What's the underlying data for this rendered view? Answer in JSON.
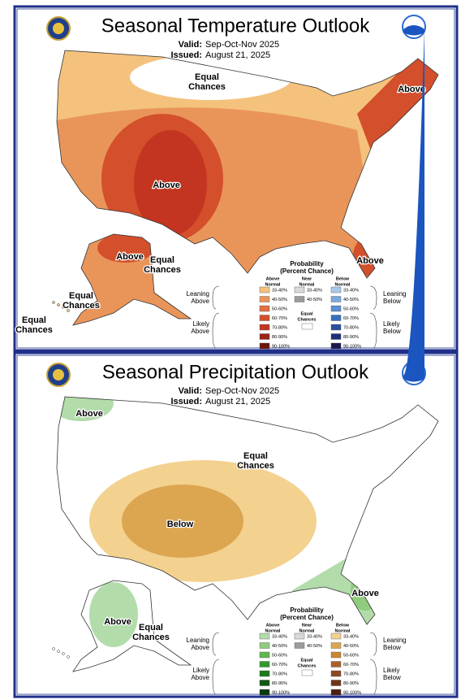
{
  "panels": [
    {
      "title": "Seasonal Temperature Outlook",
      "valid_label": "Valid:",
      "valid": "Sep-Oct-Nov 2025",
      "issued_label": "Issued:",
      "issued": "August 21, 2025",
      "map_labels": [
        [
          "Equal",
          "Chances"
        ],
        [
          "Above"
        ],
        [
          "Above"
        ],
        [
          "Above"
        ],
        [
          "Equal",
          "Chances"
        ],
        [
          "Above"
        ],
        [
          "Equal",
          "Chances"
        ],
        [
          "Equal",
          "Chances"
        ]
      ],
      "legend": {
        "title": "Probability",
        "subtitle": "(Percent Chance)",
        "above_header": [
          "Above",
          "Normal"
        ],
        "near_header": [
          "Near",
          "Normal"
        ],
        "below_header": [
          "Below",
          "Normal"
        ],
        "leaning_above": [
          "Leaning",
          "Above"
        ],
        "likely_above": [
          "Likely",
          "Above"
        ],
        "leaning_below": [
          "Leaning",
          "Below"
        ],
        "likely_below": [
          "Likely",
          "Below"
        ],
        "equal": [
          "Equal",
          "Chances"
        ],
        "above": [
          {
            "label": "33-40%",
            "color": "#f4c27d"
          },
          {
            "label": "40-50%",
            "color": "#e9955a"
          },
          {
            "label": "50-60%",
            "color": "#e07040"
          },
          {
            "label": "60-70%",
            "color": "#d44f2b"
          },
          {
            "label": "70-80%",
            "color": "#c33520"
          },
          {
            "label": "80-90%",
            "color": "#9e2414"
          },
          {
            "label": "90-100%",
            "color": "#6e1508"
          }
        ],
        "near": [
          {
            "label": "33-40%",
            "color": "#d9d9d9"
          },
          {
            "label": "40-50%",
            "color": "#9b9b9b"
          }
        ],
        "below": [
          {
            "label": "33-40%",
            "color": "#a9c8ea"
          },
          {
            "label": "40-50%",
            "color": "#7aa9dc"
          },
          {
            "label": "50-60%",
            "color": "#5a8fd0"
          },
          {
            "label": "60-70%",
            "color": "#3a6fbf"
          },
          {
            "label": "70-80%",
            "color": "#2a4fa0"
          },
          {
            "label": "80-90%",
            "color": "#1d2f7a"
          },
          {
            "label": "90-100%",
            "color": "#1a1650"
          }
        ]
      }
    },
    {
      "title": "Seasonal Precipitation Outlook",
      "valid_label": "Valid:",
      "valid": "Sep-Oct-Nov 2025",
      "issued_label": "Issued:",
      "issued": "August 21, 2025",
      "map_labels": [
        [
          "Above"
        ],
        [
          "Equal",
          "Chances"
        ],
        [
          "Below"
        ],
        [
          "Above"
        ],
        [
          "Above"
        ],
        [
          "Equal",
          "Chances"
        ]
      ],
      "legend": {
        "title": "Probability",
        "subtitle": "(Percent Chance)",
        "above_header": [
          "Above",
          "Normal"
        ],
        "near_header": [
          "Near",
          "Normal"
        ],
        "below_header": [
          "Below",
          "Normal"
        ],
        "leaning_above": [
          "Leaning",
          "Above"
        ],
        "likely_above": [
          "Likely",
          "Above"
        ],
        "leaning_below": [
          "Leaning",
          "Below"
        ],
        "likely_below": [
          "Likely",
          "Below"
        ],
        "equal": [
          "Equal",
          "Chances"
        ],
        "above": [
          {
            "label": "33-40%",
            "color": "#b3dcab"
          },
          {
            "label": "40-50%",
            "color": "#8fcc7d"
          },
          {
            "label": "50-60%",
            "color": "#5fb84a"
          },
          {
            "label": "60-70%",
            "color": "#2f9a2b"
          },
          {
            "label": "70-80%",
            "color": "#1b7a1b"
          },
          {
            "label": "80-90%",
            "color": "#0f5a14"
          },
          {
            "label": "90-100%",
            "color": "#083a0c"
          }
        ],
        "near": [
          {
            "label": "33-40%",
            "color": "#d9d9d9"
          },
          {
            "label": "40-50%",
            "color": "#9b9b9b"
          }
        ],
        "below": [
          {
            "label": "33-40%",
            "color": "#f3d18f"
          },
          {
            "label": "40-50%",
            "color": "#dca651"
          },
          {
            "label": "50-60%",
            "color": "#c98733"
          },
          {
            "label": "60-70%",
            "color": "#a8622a"
          },
          {
            "label": "70-80%",
            "color": "#8b4a22"
          },
          {
            "label": "80-90%",
            "color": "#6e3418"
          },
          {
            "label": "90-100%",
            "color": "#4e2010"
          }
        ]
      }
    }
  ]
}
